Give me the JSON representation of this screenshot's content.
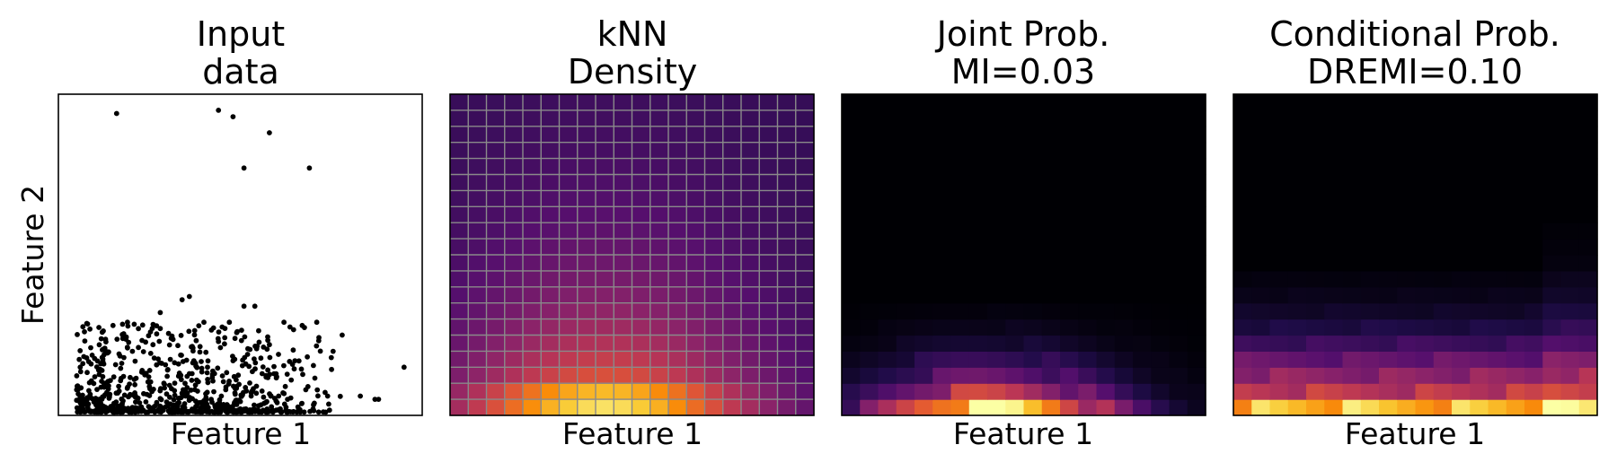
{
  "chart_data": [
    {
      "type": "scatter",
      "title_lines": [
        "Input",
        "data"
      ],
      "xlabel": "Feature 1",
      "ylabel": "Feature 2",
      "xticks": false,
      "yticks": false,
      "xlim": [
        0,
        1
      ],
      "ylim": [
        0,
        1
      ],
      "points": {
        "x": [
          0.16,
          0.44,
          0.48,
          0.58,
          0.69,
          0.51,
          0.34,
          0.36,
          0.51,
          0.54,
          0.28,
          0.15,
          0.19,
          0.22,
          0.4,
          0.47,
          0.62,
          0.67,
          0.71,
          0.78,
          0.72,
          0.75,
          0.13,
          0.06,
          0.09,
          0.12,
          0.95,
          0.83,
          0.87,
          0.88,
          0.26,
          0.18,
          0.31,
          0.1,
          0.05,
          0.37,
          0.44,
          0.52,
          0.58,
          0.65,
          0.23,
          0.33,
          0.41,
          0.56,
          0.07,
          0.29,
          0.38,
          0.49,
          0.6,
          0.68,
          0.21,
          0.35,
          0.46,
          0.53,
          0.63,
          0.27,
          0.42,
          0.57,
          0.14,
          0.74,
          0.08,
          0.3,
          0.45,
          0.55,
          0.66,
          0.2,
          0.39,
          0.5,
          0.61,
          0.24,
          0.32,
          0.43,
          0.59,
          0.17,
          0.7,
          0.11,
          0.36,
          0.48,
          0.64,
          0.25
        ],
        "y": [
          0.94,
          0.95,
          0.93,
          0.88,
          0.77,
          0.77,
          0.36,
          0.37,
          0.34,
          0.34,
          0.32,
          0.28,
          0.29,
          0.27,
          0.29,
          0.29,
          0.29,
          0.28,
          0.29,
          0.25,
          0.2,
          0.18,
          0.2,
          0.15,
          0.16,
          0.14,
          0.15,
          0.06,
          0.05,
          0.05,
          0.22,
          0.18,
          0.24,
          0.12,
          0.08,
          0.21,
          0.23,
          0.19,
          0.22,
          0.17,
          0.14,
          0.16,
          0.15,
          0.13,
          0.05,
          0.1,
          0.11,
          0.09,
          0.12,
          0.08,
          0.07,
          0.06,
          0.08,
          0.06,
          0.05,
          0.04,
          0.05,
          0.04,
          0.06,
          0.06,
          0.03,
          0.03,
          0.03,
          0.03,
          0.02,
          0.02,
          0.02,
          0.02,
          0.02,
          0.01,
          0.01,
          0.01,
          0.01,
          0.01,
          0.02,
          0.02,
          0.13,
          0.17,
          0.11,
          0.09
        ]
      }
    },
    {
      "type": "heatmap",
      "title_lines": [
        "kNN",
        "Density"
      ],
      "xlabel": "Feature 1",
      "colormap": "inferno",
      "grid": true,
      "nx": 20,
      "ny": 20
    },
    {
      "type": "heatmap",
      "title_lines": [
        "Joint Prob.",
        "MI=0.03"
      ],
      "xlabel": "Feature 1",
      "colormap": "inferno",
      "grid": false,
      "nx": 20,
      "ny": 20
    },
    {
      "type": "heatmap",
      "title_lines": [
        "Conditional Prob.",
        "DREMI=0.10"
      ],
      "xlabel": "Feature 1",
      "colormap": "inferno",
      "grid": false,
      "nx": 20,
      "ny": 20
    }
  ]
}
